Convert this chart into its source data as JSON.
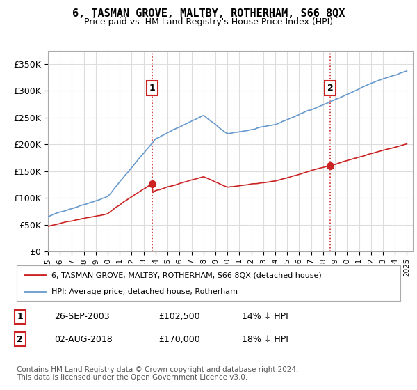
{
  "title": "6, TASMAN GROVE, MALTBY, ROTHERHAM, S66 8QX",
  "subtitle": "Price paid vs. HM Land Registry's House Price Index (HPI)",
  "ylabel_ticks": [
    "£0",
    "£50K",
    "£100K",
    "£150K",
    "£200K",
    "£250K",
    "£300K",
    "£350K"
  ],
  "ytick_values": [
    0,
    50000,
    100000,
    150000,
    200000,
    250000,
    300000,
    350000
  ],
  "ylim": [
    0,
    375000
  ],
  "xlim_start": 1995.0,
  "xlim_end": 2025.5,
  "hpi_color": "#6699cc",
  "property_color": "#cc2222",
  "vline_color": "#cc2222",
  "sale1_x": 2003.73,
  "sale1_y": 102500,
  "sale2_x": 2018.58,
  "sale2_y": 170000,
  "legend_line1": "6, TASMAN GROVE, MALTBY, ROTHERHAM, S66 8QX (detached house)",
  "legend_line2": "HPI: Average price, detached house, Rotherham",
  "table_row1": [
    "1",
    "26-SEP-2003",
    "£102,500",
    "14% ↓ HPI"
  ],
  "table_row2": [
    "2",
    "02-AUG-2018",
    "£170,000",
    "18% ↓ HPI"
  ],
  "footnote": "Contains HM Land Registry data © Crown copyright and database right 2024.\nThis data is licensed under the Open Government Licence v3.0.",
  "background_color": "#ffffff",
  "grid_color": "#dddddd"
}
